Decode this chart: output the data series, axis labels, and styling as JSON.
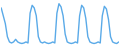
{
  "values": [
    70,
    55,
    40,
    15,
    5,
    3,
    5,
    10,
    5,
    3,
    2,
    3,
    5,
    3,
    60,
    75,
    70,
    55,
    15,
    5,
    3,
    5,
    3,
    2,
    3,
    5,
    3,
    60,
    78,
    72,
    55,
    20,
    5,
    3,
    2,
    3,
    5,
    3,
    55,
    75,
    70,
    50,
    15,
    5,
    3,
    2,
    3,
    5,
    3,
    55,
    73,
    68,
    48,
    15,
    5,
    3,
    2,
    5
  ],
  "line_color": "#5aaae8",
  "bg_color": "#ffffff",
  "linewidth": 1.0
}
